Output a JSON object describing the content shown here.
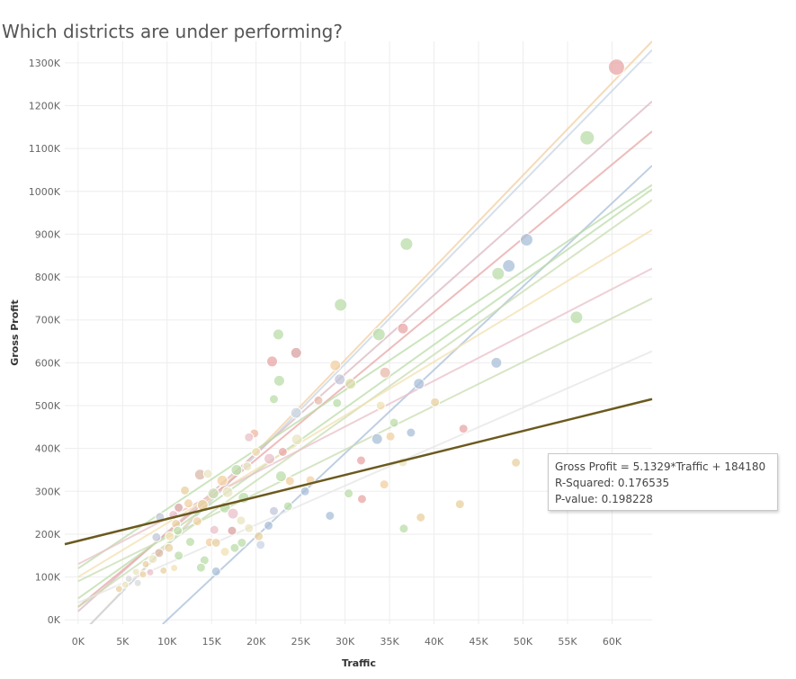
{
  "page": {
    "title": "Which districts are under performing?"
  },
  "chart_data": {
    "type": "scatter",
    "title": "Which districts are under performing?",
    "xlabel": "Traffic",
    "ylabel": "Gross Profit",
    "xlim": [
      -1500,
      64500
    ],
    "ylim": [
      -10000,
      1350000
    ],
    "x_ticks": [
      {
        "value": 0,
        "label": "0K"
      },
      {
        "value": 5000,
        "label": "5K"
      },
      {
        "value": 10000,
        "label": "10K"
      },
      {
        "value": 15000,
        "label": "15K"
      },
      {
        "value": 20000,
        "label": "20K"
      },
      {
        "value": 25000,
        "label": "25K"
      },
      {
        "value": 30000,
        "label": "30K"
      },
      {
        "value": 35000,
        "label": "35K"
      },
      {
        "value": 40000,
        "label": "40K"
      },
      {
        "value": 45000,
        "label": "45K"
      },
      {
        "value": 50000,
        "label": "50K"
      },
      {
        "value": 55000,
        "label": "55K"
      },
      {
        "value": 60000,
        "label": "60K"
      }
    ],
    "y_ticks": [
      {
        "value": 0,
        "label": "0K"
      },
      {
        "value": 100000,
        "label": "100K"
      },
      {
        "value": 200000,
        "label": "200K"
      },
      {
        "value": 300000,
        "label": "300K"
      },
      {
        "value": 400000,
        "label": "400K"
      },
      {
        "value": 500000,
        "label": "500K"
      },
      {
        "value": 600000,
        "label": "600K"
      },
      {
        "value": 700000,
        "label": "700K"
      },
      {
        "value": 800000,
        "label": "800K"
      },
      {
        "value": 900000,
        "label": "900K"
      },
      {
        "value": 1000000,
        "label": "1000K"
      },
      {
        "value": 1100000,
        "label": "1100K"
      },
      {
        "value": 1200000,
        "label": "1200K"
      },
      {
        "value": 1300000,
        "label": "1300K"
      }
    ],
    "grid": true,
    "points": [
      {
        "x": 60500,
        "y": 1290000,
        "r": 9,
        "color": "#e8a6a6"
      },
      {
        "x": 57200,
        "y": 1125000,
        "r": 8,
        "color": "#b9dca8"
      },
      {
        "x": 50400,
        "y": 887000,
        "r": 7,
        "color": "#a9bfd8"
      },
      {
        "x": 48400,
        "y": 826000,
        "r": 7,
        "color": "#a9bfd8"
      },
      {
        "x": 47200,
        "y": 808000,
        "r": 7,
        "color": "#b9dca8"
      },
      {
        "x": 47000,
        "y": 600000,
        "r": 6,
        "color": "#a9bfd8"
      },
      {
        "x": 56000,
        "y": 706000,
        "r": 7,
        "color": "#b9dca8"
      },
      {
        "x": 36900,
        "y": 877000,
        "r": 7,
        "color": "#b9dca8"
      },
      {
        "x": 29500,
        "y": 735000,
        "r": 7,
        "color": "#b9dca8"
      },
      {
        "x": 33800,
        "y": 666000,
        "r": 7,
        "color": "#b9dca8"
      },
      {
        "x": 36500,
        "y": 680000,
        "r": 6,
        "color": "#e8a6a6"
      },
      {
        "x": 22500,
        "y": 666000,
        "r": 6,
        "color": "#b9dca8"
      },
      {
        "x": 21800,
        "y": 603000,
        "r": 6,
        "color": "#e8a6a6"
      },
      {
        "x": 24500,
        "y": 623000,
        "r": 6,
        "color": "#d9a0a0"
      },
      {
        "x": 22600,
        "y": 558000,
        "r": 6,
        "color": "#b9dca8"
      },
      {
        "x": 22000,
        "y": 515000,
        "r": 5,
        "color": "#b9dca8"
      },
      {
        "x": 28900,
        "y": 594000,
        "r": 6,
        "color": "#f2cfa0"
      },
      {
        "x": 29400,
        "y": 561000,
        "r": 6,
        "color": "#c2c6d8"
      },
      {
        "x": 30600,
        "y": 551000,
        "r": 6,
        "color": "#d8dca8"
      },
      {
        "x": 34500,
        "y": 577000,
        "r": 6,
        "color": "#e8b9a8"
      },
      {
        "x": 38300,
        "y": 551000,
        "r": 6,
        "color": "#a9bfd8"
      },
      {
        "x": 29100,
        "y": 506000,
        "r": 5,
        "color": "#b9dca8"
      },
      {
        "x": 27000,
        "y": 512000,
        "r": 5,
        "color": "#e8b9a8"
      },
      {
        "x": 34000,
        "y": 500000,
        "r": 5,
        "color": "#f2e0b0"
      },
      {
        "x": 35500,
        "y": 460000,
        "r": 5,
        "color": "#b9dca8"
      },
      {
        "x": 40100,
        "y": 508000,
        "r": 5,
        "color": "#e8d0a0"
      },
      {
        "x": 24500,
        "y": 483000,
        "r": 6,
        "color": "#c8d4e4"
      },
      {
        "x": 24600,
        "y": 421000,
        "r": 6,
        "color": "#e8e4c0"
      },
      {
        "x": 33600,
        "y": 422000,
        "r": 6,
        "color": "#a9bfd8"
      },
      {
        "x": 35100,
        "y": 428000,
        "r": 5,
        "color": "#f2cfa0"
      },
      {
        "x": 37400,
        "y": 437000,
        "r": 5,
        "color": "#a9bfd8"
      },
      {
        "x": 43300,
        "y": 446000,
        "r": 5,
        "color": "#e8a6a6"
      },
      {
        "x": 19800,
        "y": 435000,
        "r": 5,
        "color": "#f2b8a0"
      },
      {
        "x": 19200,
        "y": 426000,
        "r": 5,
        "color": "#e8c0c8"
      },
      {
        "x": 20000,
        "y": 392000,
        "r": 5,
        "color": "#f2e0b0"
      },
      {
        "x": 21500,
        "y": 376000,
        "r": 6,
        "color": "#e8c0c8"
      },
      {
        "x": 23000,
        "y": 392000,
        "r": 5,
        "color": "#e8a6a6"
      },
      {
        "x": 17800,
        "y": 350000,
        "r": 6,
        "color": "#b9dca8"
      },
      {
        "x": 19000,
        "y": 358000,
        "r": 5,
        "color": "#e8e4c0"
      },
      {
        "x": 22800,
        "y": 335000,
        "r": 6,
        "color": "#b9dca8"
      },
      {
        "x": 23800,
        "y": 324000,
        "r": 5,
        "color": "#f2cfa0"
      },
      {
        "x": 26100,
        "y": 326000,
        "r": 5,
        "color": "#f2cfa0"
      },
      {
        "x": 31800,
        "y": 372000,
        "r": 5,
        "color": "#e8a6a6"
      },
      {
        "x": 36500,
        "y": 368000,
        "r": 5,
        "color": "#e8e4c0"
      },
      {
        "x": 34400,
        "y": 316000,
        "r": 5,
        "color": "#f2cfa0"
      },
      {
        "x": 25500,
        "y": 300000,
        "r": 5,
        "color": "#a9bfd8"
      },
      {
        "x": 30400,
        "y": 295000,
        "r": 5,
        "color": "#b9dca8"
      },
      {
        "x": 31900,
        "y": 282000,
        "r": 5,
        "color": "#e8a6a6"
      },
      {
        "x": 49200,
        "y": 367000,
        "r": 5,
        "color": "#e8d0a0"
      },
      {
        "x": 42900,
        "y": 270000,
        "r": 5,
        "color": "#e8d0a0"
      },
      {
        "x": 28300,
        "y": 243000,
        "r": 5,
        "color": "#a9bfd8"
      },
      {
        "x": 38500,
        "y": 239000,
        "r": 5,
        "color": "#e8d0a0"
      },
      {
        "x": 36600,
        "y": 213000,
        "r": 5,
        "color": "#b9dca8"
      },
      {
        "x": 23600,
        "y": 265000,
        "r": 5,
        "color": "#b9dca8"
      },
      {
        "x": 22000,
        "y": 254000,
        "r": 5,
        "color": "#c2c6d8"
      },
      {
        "x": 21400,
        "y": 220000,
        "r": 5,
        "color": "#a9bfd8"
      },
      {
        "x": 20300,
        "y": 195000,
        "r": 5,
        "color": "#e8d0a0"
      },
      {
        "x": 19200,
        "y": 214000,
        "r": 5,
        "color": "#e8e4c0"
      },
      {
        "x": 20500,
        "y": 175000,
        "r": 5,
        "color": "#c8d4e4"
      },
      {
        "x": 17600,
        "y": 168000,
        "r": 5,
        "color": "#b9dca8"
      },
      {
        "x": 16500,
        "y": 159000,
        "r": 5,
        "color": "#f2e0b0"
      },
      {
        "x": 18400,
        "y": 180000,
        "r": 5,
        "color": "#b9dca8"
      },
      {
        "x": 15500,
        "y": 113000,
        "r": 5,
        "color": "#a9bfd8"
      },
      {
        "x": 14200,
        "y": 139000,
        "r": 5,
        "color": "#b9dca8"
      },
      {
        "x": 13800,
        "y": 122000,
        "r": 5,
        "color": "#b9dca8"
      },
      {
        "x": 13700,
        "y": 339000,
        "r": 6,
        "color": "#d9b8a8"
      },
      {
        "x": 14600,
        "y": 341000,
        "r": 5,
        "color": "#e8e4c0"
      },
      {
        "x": 16200,
        "y": 325000,
        "r": 6,
        "color": "#f2cfa0"
      },
      {
        "x": 15200,
        "y": 295000,
        "r": 6,
        "color": "#c8dcb0"
      },
      {
        "x": 16800,
        "y": 298000,
        "r": 6,
        "color": "#e8e4c0"
      },
      {
        "x": 18600,
        "y": 285000,
        "r": 6,
        "color": "#b9dca8"
      },
      {
        "x": 14000,
        "y": 268000,
        "r": 6,
        "color": "#e8d0a0"
      },
      {
        "x": 16500,
        "y": 262000,
        "r": 6,
        "color": "#b9dca8"
      },
      {
        "x": 17400,
        "y": 248000,
        "r": 6,
        "color": "#e8c0c8"
      },
      {
        "x": 12400,
        "y": 272000,
        "r": 5,
        "color": "#f2cfa0"
      },
      {
        "x": 12000,
        "y": 302000,
        "r": 5,
        "color": "#e8d0a0"
      },
      {
        "x": 11300,
        "y": 262000,
        "r": 5,
        "color": "#d9a0a0"
      },
      {
        "x": 10700,
        "y": 245000,
        "r": 5,
        "color": "#e8c0c8"
      },
      {
        "x": 9200,
        "y": 240000,
        "r": 5,
        "color": "#c2c6d8"
      },
      {
        "x": 11000,
        "y": 224000,
        "r": 5,
        "color": "#e8d0a0"
      },
      {
        "x": 13400,
        "y": 230000,
        "r": 5,
        "color": "#f2cfa0"
      },
      {
        "x": 15300,
        "y": 210000,
        "r": 5,
        "color": "#e8c0c8"
      },
      {
        "x": 11200,
        "y": 208000,
        "r": 5,
        "color": "#b9dca8"
      },
      {
        "x": 10300,
        "y": 195000,
        "r": 5,
        "color": "#f2e0b0"
      },
      {
        "x": 8800,
        "y": 193000,
        "r": 5,
        "color": "#c2c6d8"
      },
      {
        "x": 12600,
        "y": 182000,
        "r": 5,
        "color": "#b9dca8"
      },
      {
        "x": 14800,
        "y": 181000,
        "r": 5,
        "color": "#f2cfa0"
      },
      {
        "x": 15500,
        "y": 180000,
        "r": 5,
        "color": "#e8d0a0"
      },
      {
        "x": 10200,
        "y": 168000,
        "r": 5,
        "color": "#e8d0a0"
      },
      {
        "x": 9100,
        "y": 156000,
        "r": 5,
        "color": "#d9b8a8"
      },
      {
        "x": 8400,
        "y": 142000,
        "r": 5,
        "color": "#e8e4c0"
      },
      {
        "x": 11300,
        "y": 150000,
        "r": 5,
        "color": "#b9dca8"
      },
      {
        "x": 7600,
        "y": 130000,
        "r": 4,
        "color": "#e8d0a0"
      },
      {
        "x": 6500,
        "y": 112000,
        "r": 4,
        "color": "#e8e4c0"
      },
      {
        "x": 5700,
        "y": 96000,
        "r": 4,
        "color": "#d9d9d9"
      },
      {
        "x": 7300,
        "y": 106000,
        "r": 4,
        "color": "#f2cfa0"
      },
      {
        "x": 8100,
        "y": 111000,
        "r": 4,
        "color": "#e8c0c8"
      },
      {
        "x": 9600,
        "y": 115000,
        "r": 4,
        "color": "#e8d0a0"
      },
      {
        "x": 5300,
        "y": 82000,
        "r": 4,
        "color": "#e8e4c0"
      },
      {
        "x": 6700,
        "y": 86000,
        "r": 4,
        "color": "#d9d9d9"
      },
      {
        "x": 4600,
        "y": 72000,
        "r": 4,
        "color": "#e8d0a0"
      },
      {
        "x": 10800,
        "y": 121000,
        "r": 4,
        "color": "#f2e0b0"
      },
      {
        "x": 17300,
        "y": 208000,
        "r": 5,
        "color": "#d9a0a0"
      },
      {
        "x": 18300,
        "y": 232000,
        "r": 5,
        "color": "#e8e4c0"
      }
    ],
    "trend_lines": [
      {
        "x1": 0,
        "y1": -40000,
        "x2": 64500,
        "y2": 1350000,
        "color": "#f2cfa0"
      },
      {
        "x1": 0,
        "y1": -40000,
        "x2": 64500,
        "y2": 1330000,
        "color": "#c8d4e4"
      },
      {
        "x1": 0,
        "y1": 20000,
        "x2": 64500,
        "y2": 1210000,
        "color": "#d9b8c0"
      },
      {
        "x1": 0,
        "y1": 30000,
        "x2": 64500,
        "y2": 1140000,
        "color": "#e8a6a6"
      },
      {
        "x1": 9500,
        "y1": -10000,
        "x2": 64500,
        "y2": 1060000,
        "color": "#a9bfd8"
      },
      {
        "x1": 0,
        "y1": 120000,
        "x2": 64500,
        "y2": 1015000,
        "color": "#b9dca8"
      },
      {
        "x1": 0,
        "y1": 50000,
        "x2": 64500,
        "y2": 1005000,
        "color": "#b9dca8"
      },
      {
        "x1": 0,
        "y1": 30000,
        "x2": 64500,
        "y2": 980000,
        "color": "#c8dcb0"
      },
      {
        "x1": 0,
        "y1": 100000,
        "x2": 64500,
        "y2": 910000,
        "color": "#f2e0b0"
      },
      {
        "x1": 0,
        "y1": 130000,
        "x2": 64500,
        "y2": 820000,
        "color": "#e8c0c8"
      },
      {
        "x1": 0,
        "y1": 90000,
        "x2": 64500,
        "y2": 750000,
        "color": "#c8dcb0"
      },
      {
        "x1": 0,
        "y1": 40000,
        "x2": 64500,
        "y2": 627000,
        "color": "#e6e6e6"
      }
    ],
    "main_trend": {
      "slope": 5.1329,
      "intercept": 184180,
      "x_start": -1500,
      "x_end": 64500,
      "color": "#6b5a1e",
      "equation": "Gross Profit = 5.1329*Traffic + 184180",
      "r_squared": "R-Squared: 0.176535",
      "p_value": "P-value: 0.198228"
    }
  }
}
